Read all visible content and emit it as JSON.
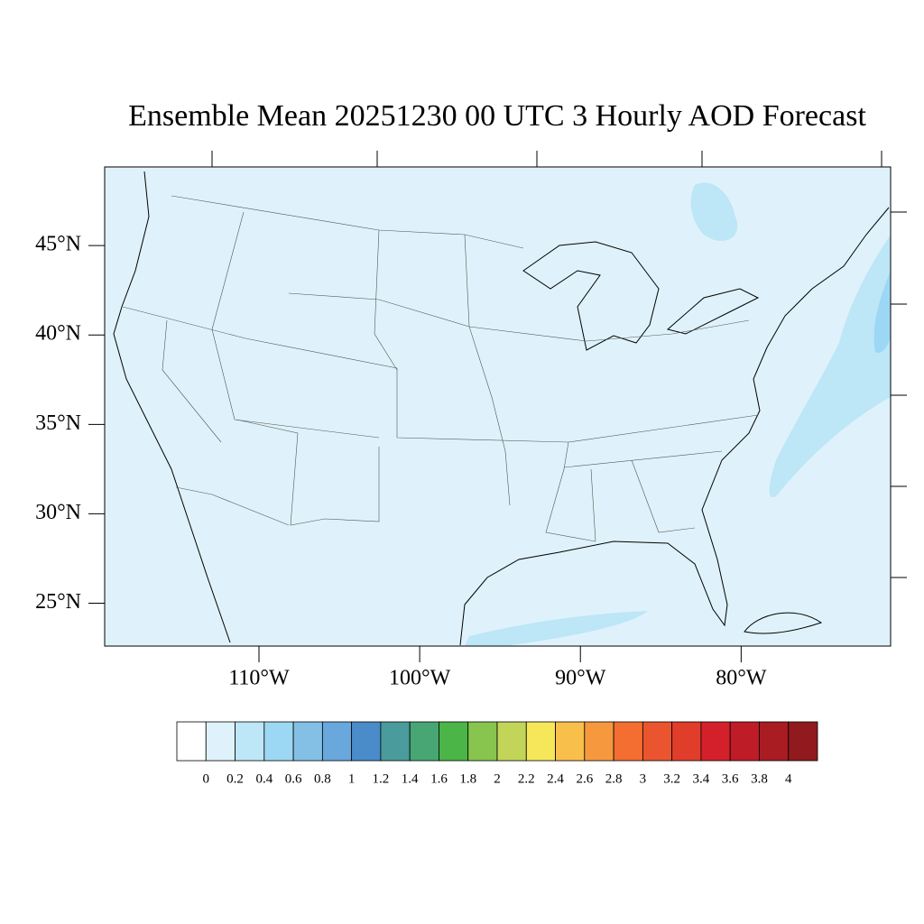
{
  "map": {
    "title": "Ensemble Mean 20251230 00 UTC 3 Hourly AOD Forecast",
    "ylim": [
      22.6,
      49.4
    ],
    "xlim": [
      -119.6,
      -70.7
    ],
    "lat_ticks": [
      {
        "value": 45,
        "label": "45°N"
      },
      {
        "value": 40,
        "label": "40°N"
      },
      {
        "value": 35,
        "label": "35°N"
      },
      {
        "value": 30,
        "label": "30°N"
      },
      {
        "value": 25,
        "label": "25°N"
      }
    ],
    "lon_ticks": [
      {
        "value": -110,
        "label": "110°W"
      },
      {
        "value": -100,
        "label": "100°W"
      },
      {
        "value": -90,
        "label": "90°W"
      },
      {
        "value": -80,
        "label": "80°W"
      }
    ],
    "colorbar": {
      "levels": [
        0,
        0.2,
        0.4,
        0.6,
        0.8,
        1,
        1.2,
        1.4,
        1.6,
        1.8,
        2,
        2.2,
        2.4,
        2.6,
        2.8,
        3,
        3.2,
        3.4,
        3.6,
        3.8,
        4
      ],
      "colors": [
        "#ffffff",
        "#dff2fb",
        "#bde6f7",
        "#9cd8f3",
        "#84c0e6",
        "#68a8dc",
        "#4a8bc9",
        "#4a9b9b",
        "#47a673",
        "#4bb547",
        "#87c54e",
        "#c3d559",
        "#f6e75a",
        "#f8bf4a",
        "#f6993e",
        "#f46d31",
        "#ea5530",
        "#e03d2b",
        "#d4202a",
        "#be1c27",
        "#a81c22",
        "#901a1d"
      ]
    }
  }
}
